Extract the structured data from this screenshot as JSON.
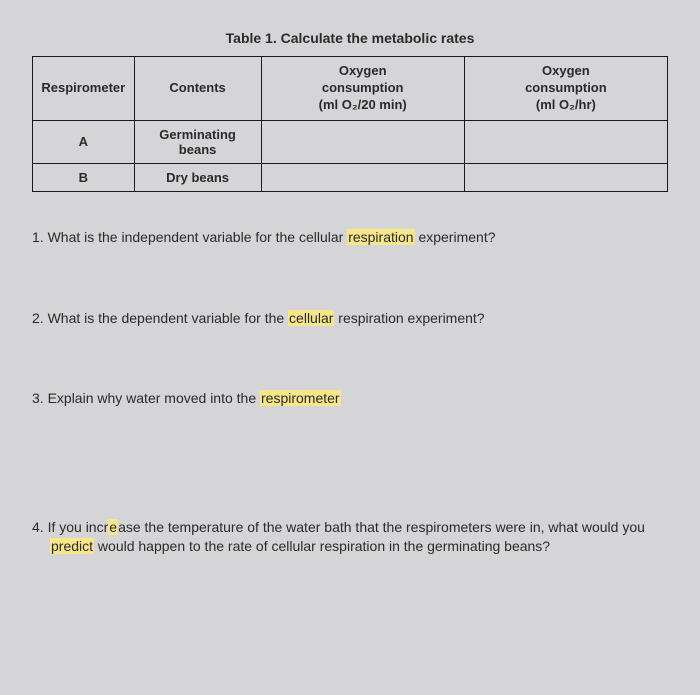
{
  "table": {
    "title": "Table 1. Calculate the metabolic rates",
    "headers": {
      "col1": "Respirometer",
      "col2": "Contents",
      "col3_line1": "Oxygen",
      "col3_line2": "consumption",
      "col3_line3": "(ml O₂/20 min)",
      "col4_line1": "Oxygen",
      "col4_line2": "consumption",
      "col4_line3": "(ml O₂/hr)"
    },
    "rows": [
      {
        "respirometer": "A",
        "contents_line1": "Germinating",
        "contents_line2": "beans",
        "c3": "",
        "c4": ""
      },
      {
        "respirometer": "B",
        "contents_line1": "Dry beans",
        "contents_line2": "",
        "c3": "",
        "c4": ""
      }
    ]
  },
  "questions": {
    "q1_pre": "1.  What is the independent variable for the cellular ",
    "q1_hl": "respiration",
    "q1_post": " experiment?",
    "q2_pre": "2.  What is the dependent variable for the ",
    "q2_hl": "cellular",
    "q2_post": " respiration experiment?",
    "q3_pre": "3.  Explain why water moved into the ",
    "q3_hl": "respirometer",
    "q4_pre1": "4.  If you incr",
    "q4_hl1": "e",
    "q4_mid1": "ase the temperature of the water bath that the respirometers were in, what would you ",
    "q4_hl2": "predict",
    "q4_post": " would happen to the rate of cellular respiration in the germinating beans?"
  }
}
